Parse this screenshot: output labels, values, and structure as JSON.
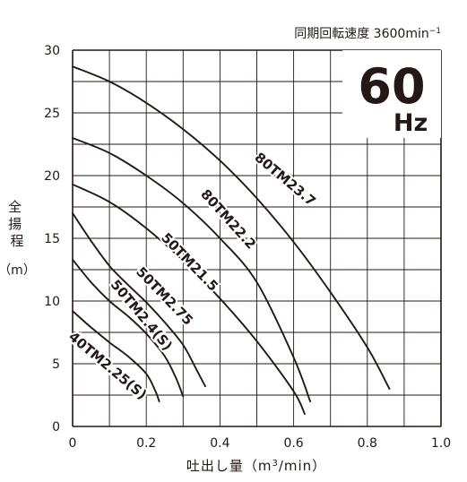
{
  "chart_data": {
    "type": "line",
    "speed_note": "同期回転速度 3600min",
    "speed_note_sup": "−1",
    "badge_value": "60",
    "badge_unit": "Hz",
    "ylabel": "全揚程",
    "ylabel_unit": "（m）",
    "xlabel": "吐出し量（m",
    "xlabel_sup": "3",
    "xlabel_tail": "/min）",
    "xlim": [
      0,
      1.0
    ],
    "ylim": [
      0,
      30
    ],
    "x_ticks": [
      {
        "value": 0,
        "label": "0"
      },
      {
        "value": 0.2,
        "label": "0.2"
      },
      {
        "value": 0.4,
        "label": "0.4"
      },
      {
        "value": 0.6,
        "label": "0.6"
      },
      {
        "value": 0.8,
        "label": "0.8"
      },
      {
        "value": 1.0,
        "label": "1.0"
      }
    ],
    "y_ticks": [
      {
        "value": 0,
        "label": "0"
      },
      {
        "value": 5,
        "label": "5"
      },
      {
        "value": 10,
        "label": "10"
      },
      {
        "value": 15,
        "label": "15"
      },
      {
        "value": 20,
        "label": "20"
      },
      {
        "value": 25,
        "label": "25"
      },
      {
        "value": 30,
        "label": "30"
      }
    ],
    "grid_x_step": 0.1,
    "grid_y_step": 2.5,
    "series": [
      {
        "name": "80TM23.7",
        "points": [
          [
            0,
            28.7
          ],
          [
            0.1,
            27.5
          ],
          [
            0.2,
            25.8
          ],
          [
            0.3,
            23.7
          ],
          [
            0.4,
            21.2
          ],
          [
            0.5,
            18.2
          ],
          [
            0.6,
            14.7
          ],
          [
            0.7,
            10.7
          ],
          [
            0.8,
            6.3
          ],
          [
            0.86,
            3.0
          ]
        ]
      },
      {
        "name": "80TM22.2",
        "points": [
          [
            0,
            23.0
          ],
          [
            0.1,
            21.8
          ],
          [
            0.2,
            20.0
          ],
          [
            0.3,
            17.8
          ],
          [
            0.4,
            15.0
          ],
          [
            0.5,
            11.5
          ],
          [
            0.6,
            5.5
          ],
          [
            0.645,
            2.0
          ]
        ]
      },
      {
        "name": "50TM21.5",
        "points": [
          [
            0,
            19.3
          ],
          [
            0.1,
            17.9
          ],
          [
            0.2,
            15.8
          ],
          [
            0.3,
            13.2
          ],
          [
            0.4,
            10.2
          ],
          [
            0.5,
            6.8
          ],
          [
            0.6,
            2.8
          ],
          [
            0.63,
            1.0
          ]
        ]
      },
      {
        "name": "50TM2.75",
        "points": [
          [
            0,
            17.0
          ],
          [
            0.05,
            14.8
          ],
          [
            0.1,
            12.8
          ],
          [
            0.15,
            11.3
          ],
          [
            0.2,
            9.9
          ],
          [
            0.25,
            8.3
          ],
          [
            0.3,
            6.5
          ],
          [
            0.335,
            4.6
          ],
          [
            0.36,
            3.2
          ]
        ]
      },
      {
        "name": "50TM2.4(S)",
        "points": [
          [
            0,
            13.3
          ],
          [
            0.05,
            11.5
          ],
          [
            0.1,
            10.0
          ],
          [
            0.15,
            8.8
          ],
          [
            0.2,
            7.4
          ],
          [
            0.25,
            5.6
          ],
          [
            0.28,
            3.9
          ],
          [
            0.3,
            2.4
          ]
        ]
      },
      {
        "name": "40TM2.25(S)",
        "points": [
          [
            0,
            9.2
          ],
          [
            0.05,
            7.9
          ],
          [
            0.1,
            6.7
          ],
          [
            0.15,
            5.6
          ],
          [
            0.2,
            4.2
          ],
          [
            0.225,
            2.8
          ],
          [
            0.235,
            2.0
          ]
        ]
      }
    ]
  }
}
